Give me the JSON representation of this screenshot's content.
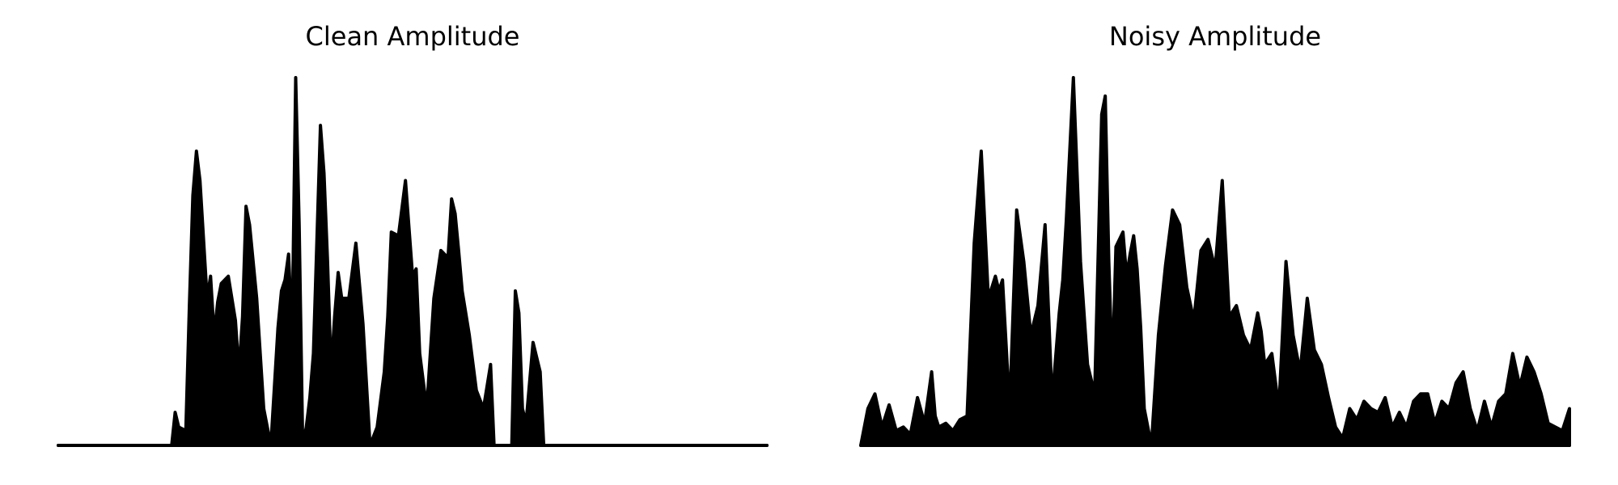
{
  "chart_data": [
    {
      "type": "area",
      "title": "Clean Amplitude",
      "xlabel": "",
      "ylabel": "",
      "axes_visible": false,
      "grid": false,
      "color": "#000000",
      "ylim": [
        0,
        1
      ],
      "x": [
        0,
        0.05,
        0.1,
        0.15,
        0.16,
        0.165,
        0.17,
        0.18,
        0.185,
        0.19,
        0.195,
        0.2,
        0.21,
        0.215,
        0.22,
        0.225,
        0.23,
        0.24,
        0.25,
        0.255,
        0.26,
        0.265,
        0.27,
        0.28,
        0.29,
        0.3,
        0.31,
        0.315,
        0.32,
        0.325,
        0.33,
        0.335,
        0.34,
        0.345,
        0.35,
        0.355,
        0.36,
        0.37,
        0.375,
        0.38,
        0.385,
        0.39,
        0.395,
        0.4,
        0.41,
        0.42,
        0.43,
        0.44,
        0.45,
        0.46,
        0.465,
        0.47,
        0.48,
        0.49,
        0.5,
        0.505,
        0.51,
        0.52,
        0.53,
        0.54,
        0.55,
        0.555,
        0.56,
        0.565,
        0.57,
        0.58,
        0.59,
        0.6,
        0.61,
        0.615,
        0.62,
        0.63,
        0.64,
        0.645,
        0.65,
        0.655,
        0.66,
        0.67,
        0.68,
        0.685,
        0.69,
        0.695,
        0.7,
        0.71,
        0.72,
        0.73,
        0.74,
        0.75,
        0.8,
        0.9,
        1.0
      ],
      "y": [
        0.0,
        0.0,
        0.0,
        0.0,
        0.0,
        0.09,
        0.05,
        0.04,
        0.38,
        0.68,
        0.8,
        0.72,
        0.4,
        0.46,
        0.3,
        0.39,
        0.44,
        0.46,
        0.34,
        0.2,
        0.35,
        0.65,
        0.6,
        0.4,
        0.1,
        0.0,
        0.32,
        0.42,
        0.45,
        0.52,
        0.3,
        1.0,
        0.6,
        0.0,
        0.05,
        0.13,
        0.25,
        0.87,
        0.74,
        0.5,
        0.2,
        0.35,
        0.47,
        0.4,
        0.4,
        0.55,
        0.33,
        0.0,
        0.05,
        0.2,
        0.35,
        0.58,
        0.57,
        0.72,
        0.46,
        0.48,
        0.25,
        0.1,
        0.4,
        0.53,
        0.51,
        0.67,
        0.63,
        0.53,
        0.42,
        0.3,
        0.15,
        0.1,
        0.22,
        0.0,
        0.0,
        0.0,
        0.0,
        0.42,
        0.36,
        0.1,
        0.06,
        0.28,
        0.2,
        0.0,
        0.0,
        0.0,
        0.0,
        0.0,
        0.0,
        0.0,
        0.0,
        0.0,
        0.0,
        0.0,
        0.0
      ]
    },
    {
      "type": "area",
      "title": "Noisy Amplitude",
      "xlabel": "",
      "ylabel": "",
      "axes_visible": false,
      "grid": false,
      "color": "#000000",
      "ylim": [
        0,
        1
      ],
      "x": [
        0,
        0.01,
        0.02,
        0.03,
        0.04,
        0.05,
        0.06,
        0.07,
        0.08,
        0.09,
        0.1,
        0.105,
        0.11,
        0.12,
        0.13,
        0.14,
        0.15,
        0.16,
        0.17,
        0.18,
        0.185,
        0.19,
        0.195,
        0.2,
        0.21,
        0.22,
        0.23,
        0.24,
        0.25,
        0.26,
        0.27,
        0.28,
        0.285,
        0.29,
        0.3,
        0.31,
        0.32,
        0.33,
        0.34,
        0.345,
        0.35,
        0.355,
        0.36,
        0.37,
        0.375,
        0.38,
        0.385,
        0.39,
        0.395,
        0.4,
        0.41,
        0.42,
        0.43,
        0.44,
        0.45,
        0.46,
        0.47,
        0.48,
        0.49,
        0.5,
        0.51,
        0.52,
        0.53,
        0.54,
        0.55,
        0.56,
        0.565,
        0.57,
        0.58,
        0.59,
        0.6,
        0.61,
        0.62,
        0.63,
        0.64,
        0.65,
        0.66,
        0.67,
        0.68,
        0.69,
        0.7,
        0.71,
        0.72,
        0.73,
        0.74,
        0.75,
        0.76,
        0.77,
        0.78,
        0.79,
        0.8,
        0.81,
        0.82,
        0.83,
        0.84,
        0.85,
        0.86,
        0.87,
        0.88,
        0.89,
        0.9,
        0.91,
        0.92,
        0.93,
        0.94,
        0.95,
        0.96,
        0.97,
        0.98,
        0.99,
        1.0
      ],
      "y": [
        0.0,
        0.1,
        0.14,
        0.05,
        0.11,
        0.04,
        0.05,
        0.03,
        0.13,
        0.06,
        0.2,
        0.08,
        0.05,
        0.06,
        0.04,
        0.07,
        0.08,
        0.55,
        0.8,
        0.4,
        0.43,
        0.46,
        0.42,
        0.45,
        0.1,
        0.64,
        0.5,
        0.3,
        0.38,
        0.6,
        0.12,
        0.36,
        0.45,
        0.61,
        1.0,
        0.5,
        0.22,
        0.14,
        0.9,
        0.95,
        0.5,
        0.2,
        0.54,
        0.58,
        0.46,
        0.52,
        0.57,
        0.48,
        0.32,
        0.1,
        0.0,
        0.3,
        0.49,
        0.64,
        0.6,
        0.43,
        0.34,
        0.53,
        0.56,
        0.48,
        0.72,
        0.35,
        0.38,
        0.3,
        0.26,
        0.36,
        0.31,
        0.22,
        0.25,
        0.1,
        0.5,
        0.3,
        0.2,
        0.4,
        0.26,
        0.22,
        0.13,
        0.05,
        0.02,
        0.1,
        0.07,
        0.12,
        0.1,
        0.09,
        0.13,
        0.05,
        0.09,
        0.05,
        0.12,
        0.14,
        0.14,
        0.06,
        0.12,
        0.1,
        0.17,
        0.2,
        0.1,
        0.04,
        0.12,
        0.05,
        0.12,
        0.14,
        0.25,
        0.16,
        0.24,
        0.2,
        0.14,
        0.06,
        0.05,
        0.04,
        0.1
      ]
    }
  ]
}
